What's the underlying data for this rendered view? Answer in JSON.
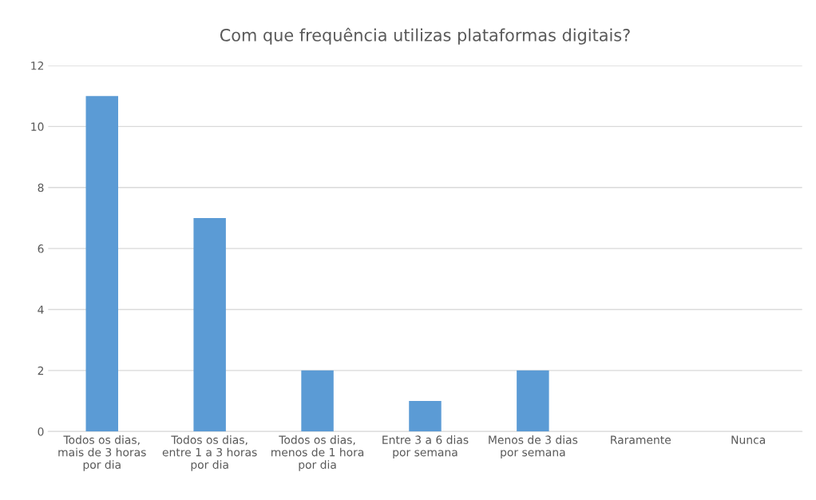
{
  "chart_data": {
    "type": "bar",
    "title": "Com que frequência utilizas plataformas digitais?",
    "categories": [
      "Todos os dias,\nmais de 3 horas\npor dia",
      "Todos os dias,\nentre 1 a 3 horas\npor dia",
      "Todos os dias,\nmenos de 1 hora\npor dia",
      "Entre 3 a 6 dias\npor semana",
      "Menos de 3 dias\npor semana",
      "Raramente",
      "Nunca"
    ],
    "values": [
      11,
      7,
      2,
      1,
      2,
      0,
      0
    ],
    "color": "#5b9bd5",
    "ylim": [
      0,
      12
    ],
    "yticks": [
      0,
      2,
      4,
      6,
      8,
      10,
      12
    ],
    "grid": "y",
    "legend": false
  }
}
